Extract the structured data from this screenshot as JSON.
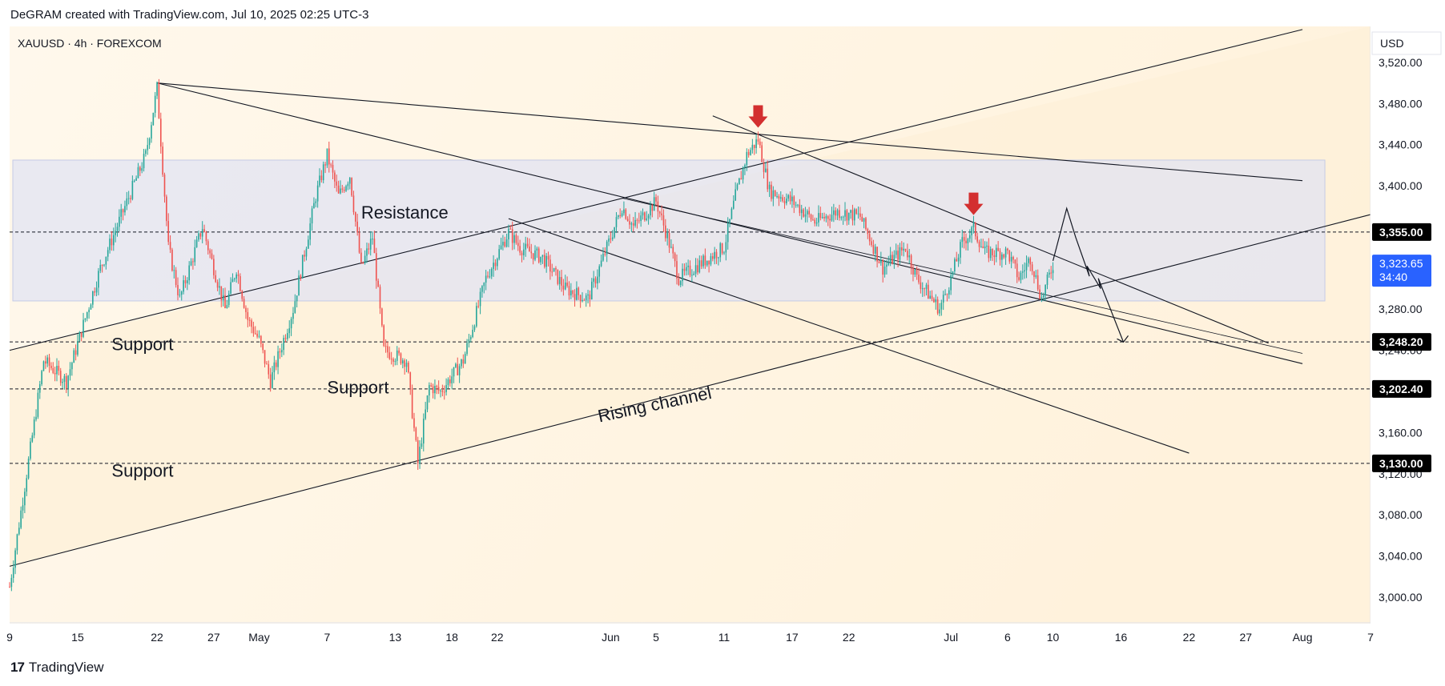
{
  "header": {
    "text": "DeGRAM created with TradingView.com, Jul 10, 2025 02:25 UTC-3"
  },
  "footer": {
    "brand": "TradingView",
    "logo_icon": "tradingview-logo-icon"
  },
  "colors": {
    "up": "#26a69a",
    "down": "#ef5350",
    "zone": "#dfe3f3",
    "channel_fill": "#fdf0d8",
    "arrow": "#d32f2f",
    "tag_black": "#000000",
    "tag_blue": "#2962ff"
  },
  "chart_data": {
    "type": "candlestick",
    "symbol_title": "XAUUSD · 4h · FOREXCOM",
    "currency": "USD",
    "y_range": [
      2975,
      3555
    ],
    "y_ticks": [
      "3,520.00",
      "3,480.00",
      "3,440.00",
      "3,400.00",
      "3,360.00",
      "3,320.00",
      "3,280.00",
      "3,240.00",
      "3,200.00",
      "3,160.00",
      "3,120.00",
      "3,080.00",
      "3,040.00",
      "3,000.00"
    ],
    "y_tick_values": [
      3520,
      3480,
      3440,
      3400,
      3360,
      3320,
      3280,
      3240,
      3200,
      3160,
      3120,
      3080,
      3040,
      3000
    ],
    "x_ticks": [
      "9",
      "15",
      "22",
      "27",
      "May",
      "7",
      "13",
      "18",
      "22",
      "Jun",
      "5",
      "11",
      "17",
      "22",
      "Jul",
      "6",
      "10",
      "16",
      "22",
      "27",
      "Aug",
      "7"
    ],
    "x_dates": [
      "2025-04-09",
      "2025-04-15",
      "2025-04-22",
      "2025-04-27",
      "2025-05-01",
      "2025-05-07",
      "2025-05-13",
      "2025-05-18",
      "2025-05-22",
      "2025-06-01",
      "2025-06-05",
      "2025-06-11",
      "2025-06-17",
      "2025-06-22",
      "2025-07-01",
      "2025-07-06",
      "2025-07-10",
      "2025-07-16",
      "2025-07-22",
      "2025-07-27",
      "2025-08-01",
      "2025-08-07"
    ],
    "x_range": [
      "2025-04-09",
      "2025-08-07"
    ],
    "price_levels": [
      {
        "label": "3,355.00",
        "value": 3355
      },
      {
        "label": "3,248.20",
        "value": 3248.2
      },
      {
        "label": "3,202.40",
        "value": 3202.4
      },
      {
        "label": "3,130.00",
        "value": 3130
      }
    ],
    "current_price": {
      "label": "3,323.65",
      "value": 3323.65,
      "countdown": "34:40"
    },
    "resistance_zone": [
      3288,
      3425
    ],
    "annotations": [
      {
        "text": "Resistance",
        "date": "2025-05-10",
        "price": 3368
      },
      {
        "text": "Support",
        "date": "2025-04-18",
        "price": 3240
      },
      {
        "text": "Support",
        "date": "2025-05-07",
        "price": 3198
      },
      {
        "text": "Support",
        "date": "2025-04-18",
        "price": 3117
      },
      {
        "text": "Rising channel",
        "date": "2025-05-31",
        "price": 3170
      }
    ],
    "trendlines": [
      {
        "name": "channel-top",
        "p1": [
          "2025-04-09",
          3240
        ],
        "p2": [
          "2025-08-01",
          3552
        ]
      },
      {
        "name": "channel-bottom",
        "p1": [
          "2025-04-09",
          3030
        ],
        "p2": [
          "2025-08-07",
          3372
        ]
      },
      {
        "name": "top-descending-long",
        "p1": [
          "2025-04-22",
          3500
        ],
        "p2": [
          "2025-08-01",
          3405
        ]
      },
      {
        "name": "descending-1",
        "p1": [
          "2025-04-22",
          3500
        ],
        "p2": [
          "2025-08-01",
          3227
        ]
      },
      {
        "name": "descending-2",
        "p1": [
          "2025-06-02",
          3388
        ],
        "p2": [
          "2025-08-01",
          3237
        ]
      },
      {
        "name": "descending-steep",
        "p1": [
          "2025-06-10",
          3468
        ],
        "p2": [
          "2025-07-29",
          3247
        ]
      },
      {
        "name": "descending-lower",
        "p1": [
          "2025-05-23",
          3368
        ],
        "p2": [
          "2025-07-22",
          3140
        ]
      }
    ],
    "forecast_path": [
      [
        "2025-07-10",
        3327
      ],
      [
        "2025-07-11",
        3378
      ],
      [
        "2025-07-12",
        3350
      ],
      [
        "2025-07-13",
        3312
      ],
      [
        "2025-07-13",
        3322
      ],
      [
        "2025-07-14",
        3300
      ],
      [
        "2025-07-14",
        3310
      ],
      [
        "2025-07-16",
        3248
      ]
    ],
    "arrows": [
      {
        "date": "2025-06-14",
        "price": 3455
      },
      {
        "date": "2025-07-03",
        "price": 3370
      }
    ],
    "price_anchors": [
      [
        "2025-04-09",
        3010
      ],
      [
        "2025-04-12",
        3230
      ],
      [
        "2025-04-14",
        3210
      ],
      [
        "2025-04-17",
        3320
      ],
      [
        "2025-04-21",
        3430
      ],
      [
        "2025-04-22",
        3495
      ],
      [
        "2025-04-23",
        3340
      ],
      [
        "2025-04-24",
        3290
      ],
      [
        "2025-04-26",
        3360
      ],
      [
        "2025-04-28",
        3280
      ],
      [
        "2025-04-29",
        3320
      ],
      [
        "2025-04-30",
        3270
      ],
      [
        "2025-05-01",
        3250
      ],
      [
        "2025-05-02",
        3210
      ],
      [
        "2025-05-04",
        3280
      ],
      [
        "2025-05-06",
        3390
      ],
      [
        "2025-05-07",
        3430
      ],
      [
        "2025-05-08",
        3390
      ],
      [
        "2025-05-09",
        3410
      ],
      [
        "2025-05-10",
        3320
      ],
      [
        "2025-05-11",
        3350
      ],
      [
        "2025-05-12",
        3240
      ],
      [
        "2025-05-14",
        3230
      ],
      [
        "2025-05-15",
        3130
      ],
      [
        "2025-05-16",
        3205
      ],
      [
        "2025-05-17",
        3200
      ],
      [
        "2025-05-19",
        3230
      ],
      [
        "2025-05-21",
        3310
      ],
      [
        "2025-05-23",
        3355
      ],
      [
        "2025-05-24",
        3340
      ],
      [
        "2025-05-26",
        3330
      ],
      [
        "2025-05-28",
        3300
      ],
      [
        "2025-05-30",
        3290
      ],
      [
        "2025-06-02",
        3380
      ],
      [
        "2025-06-03",
        3360
      ],
      [
        "2025-06-05",
        3385
      ],
      [
        "2025-06-06",
        3350
      ],
      [
        "2025-06-07",
        3310
      ],
      [
        "2025-06-09",
        3325
      ],
      [
        "2025-06-11",
        3340
      ],
      [
        "2025-06-12",
        3390
      ],
      [
        "2025-06-13",
        3430
      ],
      [
        "2025-06-14",
        3445
      ],
      [
        "2025-06-15",
        3395
      ],
      [
        "2025-06-17",
        3385
      ],
      [
        "2025-06-19",
        3365
      ],
      [
        "2025-06-21",
        3375
      ],
      [
        "2025-06-23",
        3370
      ],
      [
        "2025-06-25",
        3320
      ],
      [
        "2025-06-27",
        3340
      ],
      [
        "2025-06-28",
        3310
      ],
      [
        "2025-06-30",
        3280
      ],
      [
        "2025-07-01",
        3310
      ],
      [
        "2025-07-02",
        3345
      ],
      [
        "2025-07-03",
        3358
      ],
      [
        "2025-07-04",
        3335
      ],
      [
        "2025-07-06",
        3335
      ],
      [
        "2025-07-07",
        3310
      ],
      [
        "2025-07-08",
        3330
      ],
      [
        "2025-07-09",
        3290
      ],
      [
        "2025-07-10",
        3323.65
      ]
    ]
  }
}
